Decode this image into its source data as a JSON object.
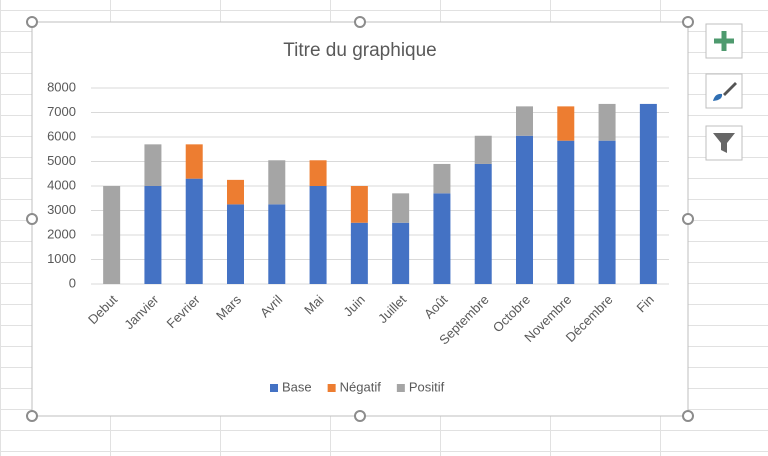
{
  "chart_data": {
    "type": "stacked-bar",
    "title": "Titre du graphique",
    "categories": [
      "Debut",
      "Janvier",
      "Fevrier",
      "Mars",
      "Avril",
      "Mai",
      "Juin",
      "Juillet",
      "Août",
      "Septembre",
      "Octobre",
      "Novembre",
      "Décembre",
      "Fin"
    ],
    "series": [
      {
        "name": "Base",
        "color": "#4472c4",
        "values": [
          null,
          4000,
          4300,
          3250,
          3250,
          4000,
          2500,
          2500,
          3700,
          4900,
          6050,
          5850,
          5850,
          7350
        ]
      },
      {
        "name": "Négatif",
        "color": "#ed7d31",
        "values": [
          null,
          null,
          1400,
          1000,
          null,
          1050,
          1500,
          null,
          null,
          null,
          null,
          1400,
          null,
          null
        ]
      },
      {
        "name": "Positif",
        "color": "#a5a5a5",
        "values": [
          4000,
          1700,
          null,
          null,
          1800,
          null,
          null,
          1200,
          1200,
          1150,
          1200,
          null,
          1500,
          null
        ]
      }
    ],
    "ylim": [
      0,
      8000
    ],
    "yticks": [
      0,
      1000,
      2000,
      3000,
      4000,
      5000,
      6000,
      7000,
      8000
    ],
    "grid": true,
    "legend": "bottom"
  }
}
